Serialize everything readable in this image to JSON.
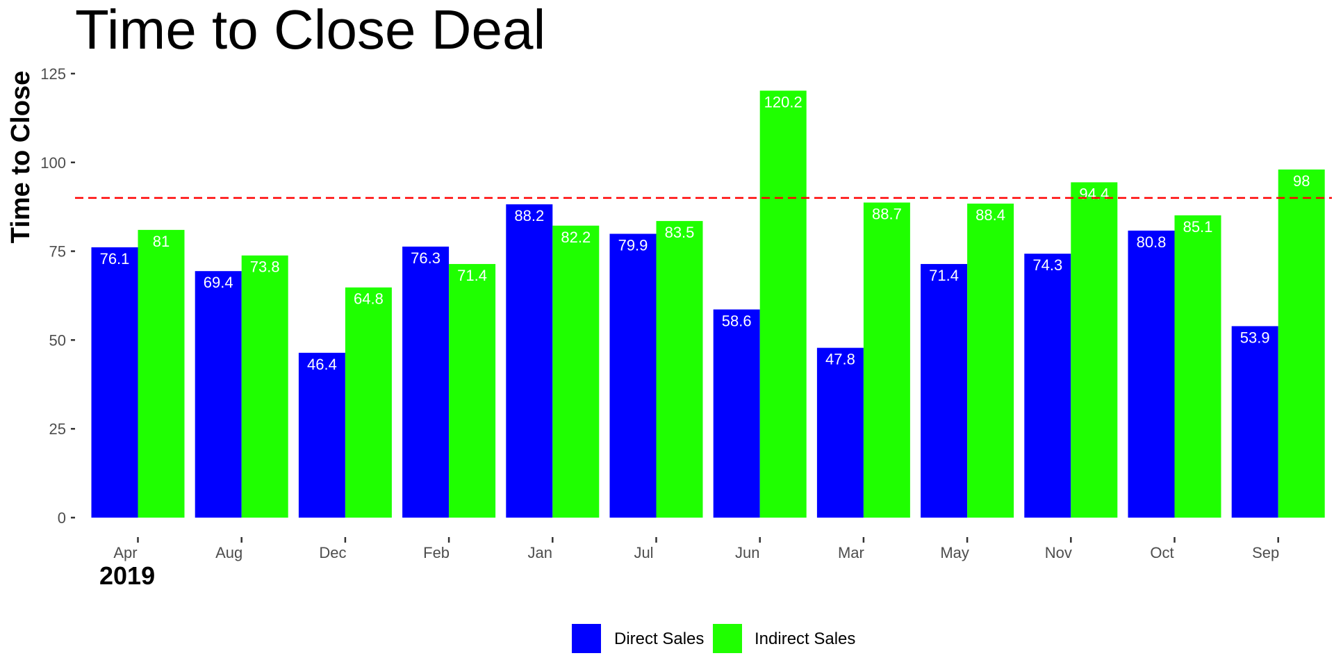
{
  "chart_data": {
    "type": "bar",
    "title": "Time to Close Deal",
    "xlabel": "",
    "ylabel": "Time to Close",
    "subtitle_bottom_left": "2019",
    "categories": [
      "Apr",
      "Aug",
      "Dec",
      "Feb",
      "Jan",
      "Jul",
      "Jun",
      "Mar",
      "May",
      "Nov",
      "Oct",
      "Sep"
    ],
    "series": [
      {
        "name": "Direct Sales",
        "color": "#0000ff",
        "values": [
          76.1,
          69.4,
          46.4,
          76.3,
          88.2,
          79.9,
          58.6,
          47.8,
          71.4,
          74.3,
          80.8,
          53.9
        ],
        "labels": [
          "76.1",
          "69.4",
          "46.4",
          "76.3",
          "88.2",
          "79.9",
          "58.6",
          "47.8",
          "71.4",
          "74.3",
          "80.8",
          "53.9"
        ]
      },
      {
        "name": "Indirect Sales",
        "color": "#1fff00",
        "values": [
          81,
          73.8,
          64.8,
          71.4,
          82.2,
          83.5,
          120.2,
          88.7,
          88.4,
          94.4,
          85.1,
          98
        ],
        "labels": [
          "81",
          "73.8",
          "64.8",
          "71.4",
          "82.2",
          "83.5",
          "120.2",
          "88.7",
          "88.4",
          "94.4",
          "85.1",
          "98"
        ]
      }
    ],
    "reference_line": {
      "value": 90,
      "color": "#ff0000",
      "style": "dashed"
    },
    "ylim": [
      0,
      125
    ],
    "yticks": [
      0,
      25,
      50,
      75,
      100,
      125
    ],
    "ytick_labels": [
      "0",
      "25",
      "50",
      "75",
      "100",
      "125"
    ],
    "grid": false,
    "legend": {
      "position": "bottom"
    }
  }
}
